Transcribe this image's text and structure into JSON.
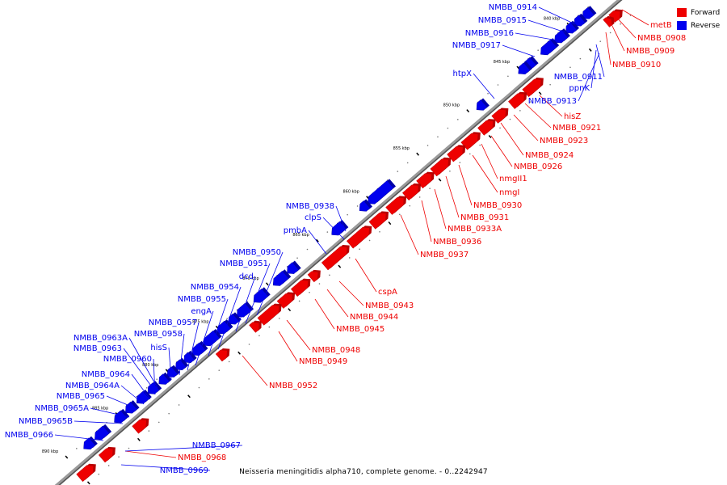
{
  "colors": {
    "forward": "#ee0000",
    "reverse": "#0000ee",
    "backbone": "#9a9a9a",
    "tick": "#000000"
  },
  "legend": {
    "forward_label": "Forward",
    "reverse_label": "Reverse"
  },
  "caption": "Neisseria meningitidis alpha710, complete genome. - 0..2242947",
  "ticks": [
    "890 kbp",
    "885 kbp",
    "880 kbp",
    "875 kbp",
    "870 kbp",
    "865 kbp",
    "860 kbp",
    "855 kbp",
    "850 kbp",
    "845 kbp",
    "840 kbp"
  ],
  "forward_genes": [
    "metB",
    "NMBB_0908",
    "NMBB_0909",
    "NMBB_0910",
    "hisZ",
    "NMBB_0921",
    "NMBB_0923",
    "NMBB_0924",
    "NMBB_0926",
    "nmgII1",
    "nmgI",
    "NMBB_0930",
    "NMBB_0931",
    "NMBB_0933A",
    "NMBB_0936",
    "NMBB_0937",
    "cspA",
    "NMBB_0943",
    "NMBB_0944",
    "NMBB_0945",
    "NMBB_0948",
    "NMBB_0949",
    "NMBB_0952",
    "NMBB_0968"
  ],
  "reverse_genes": [
    "NMBB_0914",
    "NMBB_0915",
    "NMBB_0916",
    "NMBB_0917",
    "NMBB_0911",
    "ppnK",
    "NMBB_0913",
    "htpX",
    "NMBB_0938",
    "clpS",
    "pmbA",
    "NMBB_0950",
    "NMBB_0951",
    "dcd",
    "NMBB_0954",
    "NMBB_0955",
    "engA",
    "NMBB_0957",
    "NMBB_0958",
    "hisS",
    "NMBB_0963A",
    "NMBB_0963",
    "NMBB_0960",
    "NMBB_0964",
    "NMBB_0964A",
    "NMBB_0965",
    "NMBB_0965A",
    "NMBB_0965B",
    "NMBB_0966",
    "NMBB_0967",
    "NMBB_0969"
  ]
}
